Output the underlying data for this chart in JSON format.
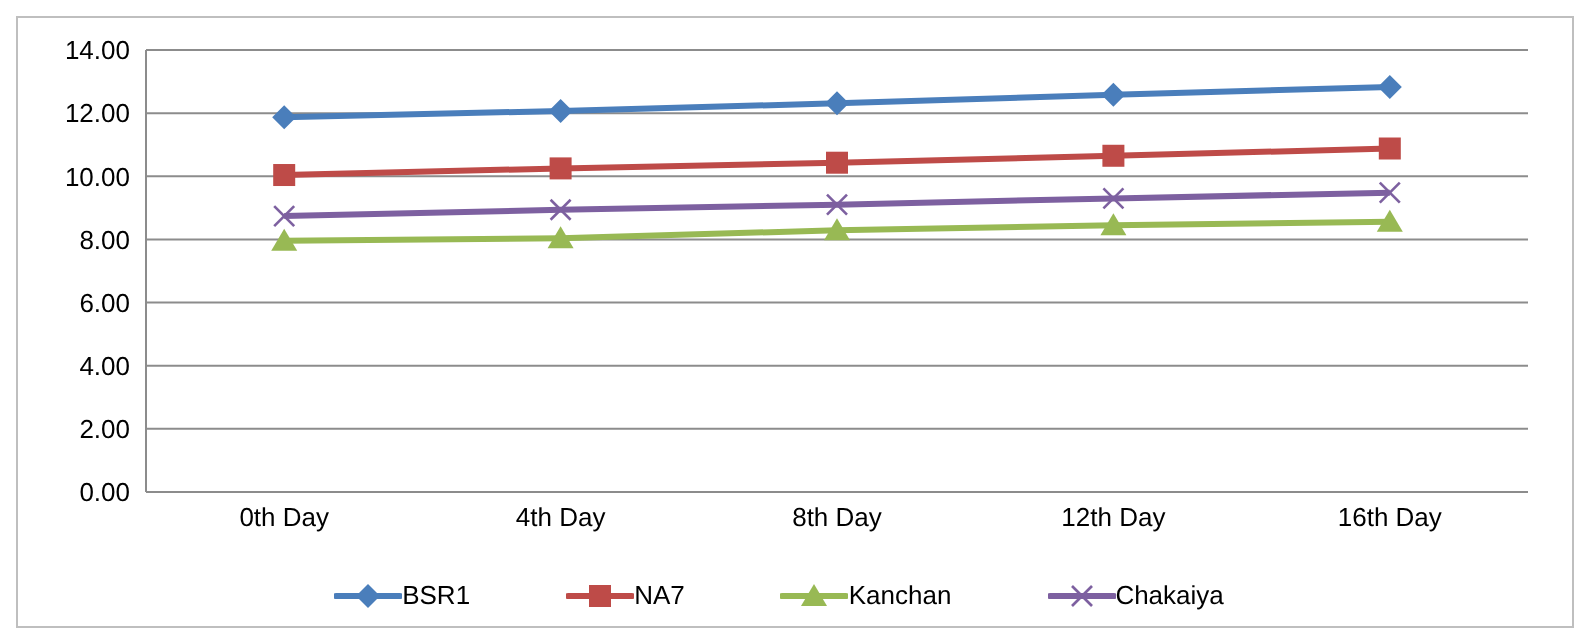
{
  "chart_data": {
    "type": "line",
    "categories": [
      "0th Day",
      "4th Day",
      "8th Day",
      "12th Day",
      "16th Day"
    ],
    "series": [
      {
        "name": "BSR1",
        "color": "#4a7ebb",
        "marker": "diamond",
        "values": [
          11.87,
          12.07,
          12.31,
          12.58,
          12.83
        ]
      },
      {
        "name": "NA7",
        "color": "#be4b48",
        "marker": "square",
        "values": [
          10.04,
          10.25,
          10.43,
          10.65,
          10.88
        ]
      },
      {
        "name": "Kanchan",
        "color": "#98b954",
        "marker": "triangle",
        "values": [
          7.96,
          8.04,
          8.29,
          8.45,
          8.56
        ]
      },
      {
        "name": "Chakaiya",
        "color": "#7d60a0",
        "marker": "cross",
        "values": [
          8.74,
          8.94,
          9.1,
          9.3,
          9.48
        ]
      }
    ],
    "ylim": [
      0,
      14
    ],
    "yticks": [
      {
        "value": 0,
        "label": "0.00"
      },
      {
        "value": 2,
        "label": "2.00"
      },
      {
        "value": 4,
        "label": "4.00"
      },
      {
        "value": 6,
        "label": "6.00"
      },
      {
        "value": 8,
        "label": "8.00"
      },
      {
        "value": 10,
        "label": "10.00"
      },
      {
        "value": 12,
        "label": "12.00"
      },
      {
        "value": 14,
        "label": "14.00"
      }
    ],
    "grid": "y",
    "legend": "bottom"
  }
}
